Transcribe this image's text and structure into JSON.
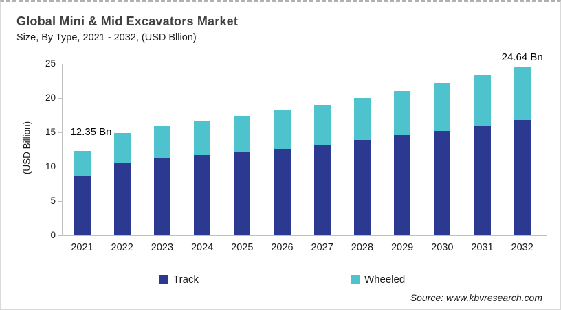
{
  "header": {
    "title": "Global Mini & Mid Excavators Market",
    "subtitle": "Size, By Type, 2021 - 2032, (USD Bllion)"
  },
  "chart_data": {
    "type": "bar",
    "stacked": true,
    "title": "Global Mini & Mid Excavators Market Size, By Type, 2021 - 2032, (USD Bllion)",
    "categories": [
      "2021",
      "2022",
      "2023",
      "2024",
      "2025",
      "2026",
      "2027",
      "2028",
      "2029",
      "2030",
      "2031",
      "2032"
    ],
    "series": [
      {
        "name": "Track",
        "color": "#2B3990",
        "values": [
          8.7,
          10.5,
          11.3,
          11.7,
          12.1,
          12.6,
          13.2,
          13.9,
          14.6,
          15.2,
          16.0,
          16.8
        ]
      },
      {
        "name": "Wheeled",
        "color": "#4EC3CE",
        "values": [
          3.65,
          4.4,
          4.7,
          5.0,
          5.3,
          5.6,
          5.85,
          6.1,
          6.5,
          7.0,
          7.4,
          7.84
        ]
      }
    ],
    "ylabel": "(USD Billion)",
    "xlabel": "",
    "ylim": [
      0,
      25
    ],
    "yticks": [
      0,
      5,
      10,
      15,
      20,
      25
    ],
    "grid": false,
    "legend_position": "bottom",
    "annotations": [
      {
        "category": "2021",
        "text": "12.35 Bn",
        "dx": 13,
        "dy": -14
      },
      {
        "category": "2032",
        "text": "24.64 Bn",
        "dx": 0,
        "dy": 0
      }
    ]
  },
  "footer": {
    "source": "Source: www.kbvresearch.com"
  }
}
